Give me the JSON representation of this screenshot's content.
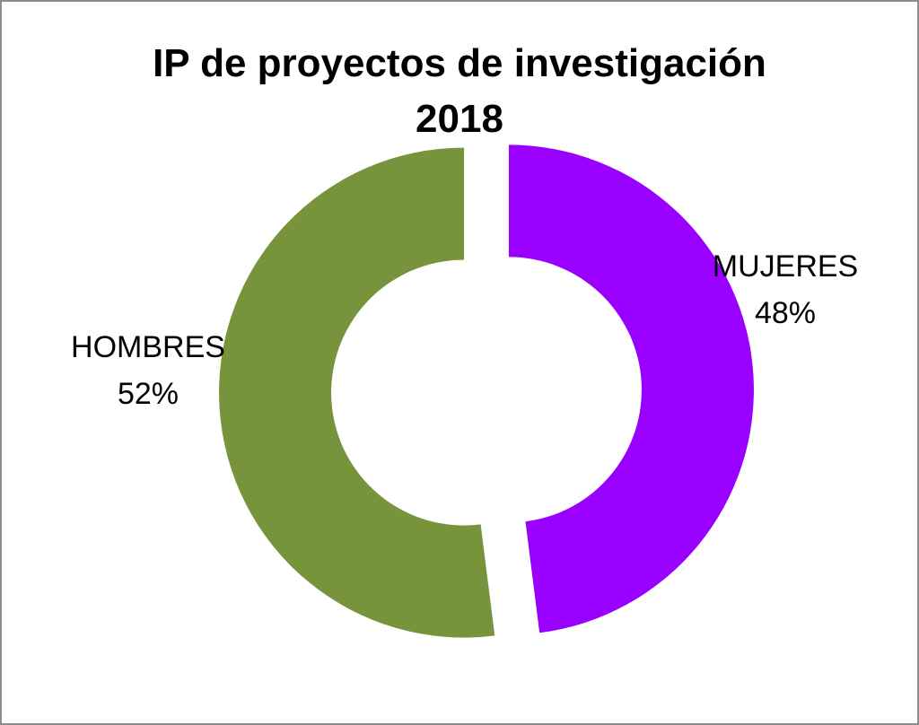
{
  "chart_data": {
    "type": "pie",
    "variant": "donut",
    "title": [
      "IP de proyectos de investigación",
      "2018"
    ],
    "slices": [
      {
        "name": "MUJERES",
        "value": 48,
        "label": "48%",
        "color": "#9900ff"
      },
      {
        "name": "HOMBRES",
        "value": 52,
        "label": "52%",
        "color": "#77933c"
      }
    ],
    "legend": "none"
  }
}
